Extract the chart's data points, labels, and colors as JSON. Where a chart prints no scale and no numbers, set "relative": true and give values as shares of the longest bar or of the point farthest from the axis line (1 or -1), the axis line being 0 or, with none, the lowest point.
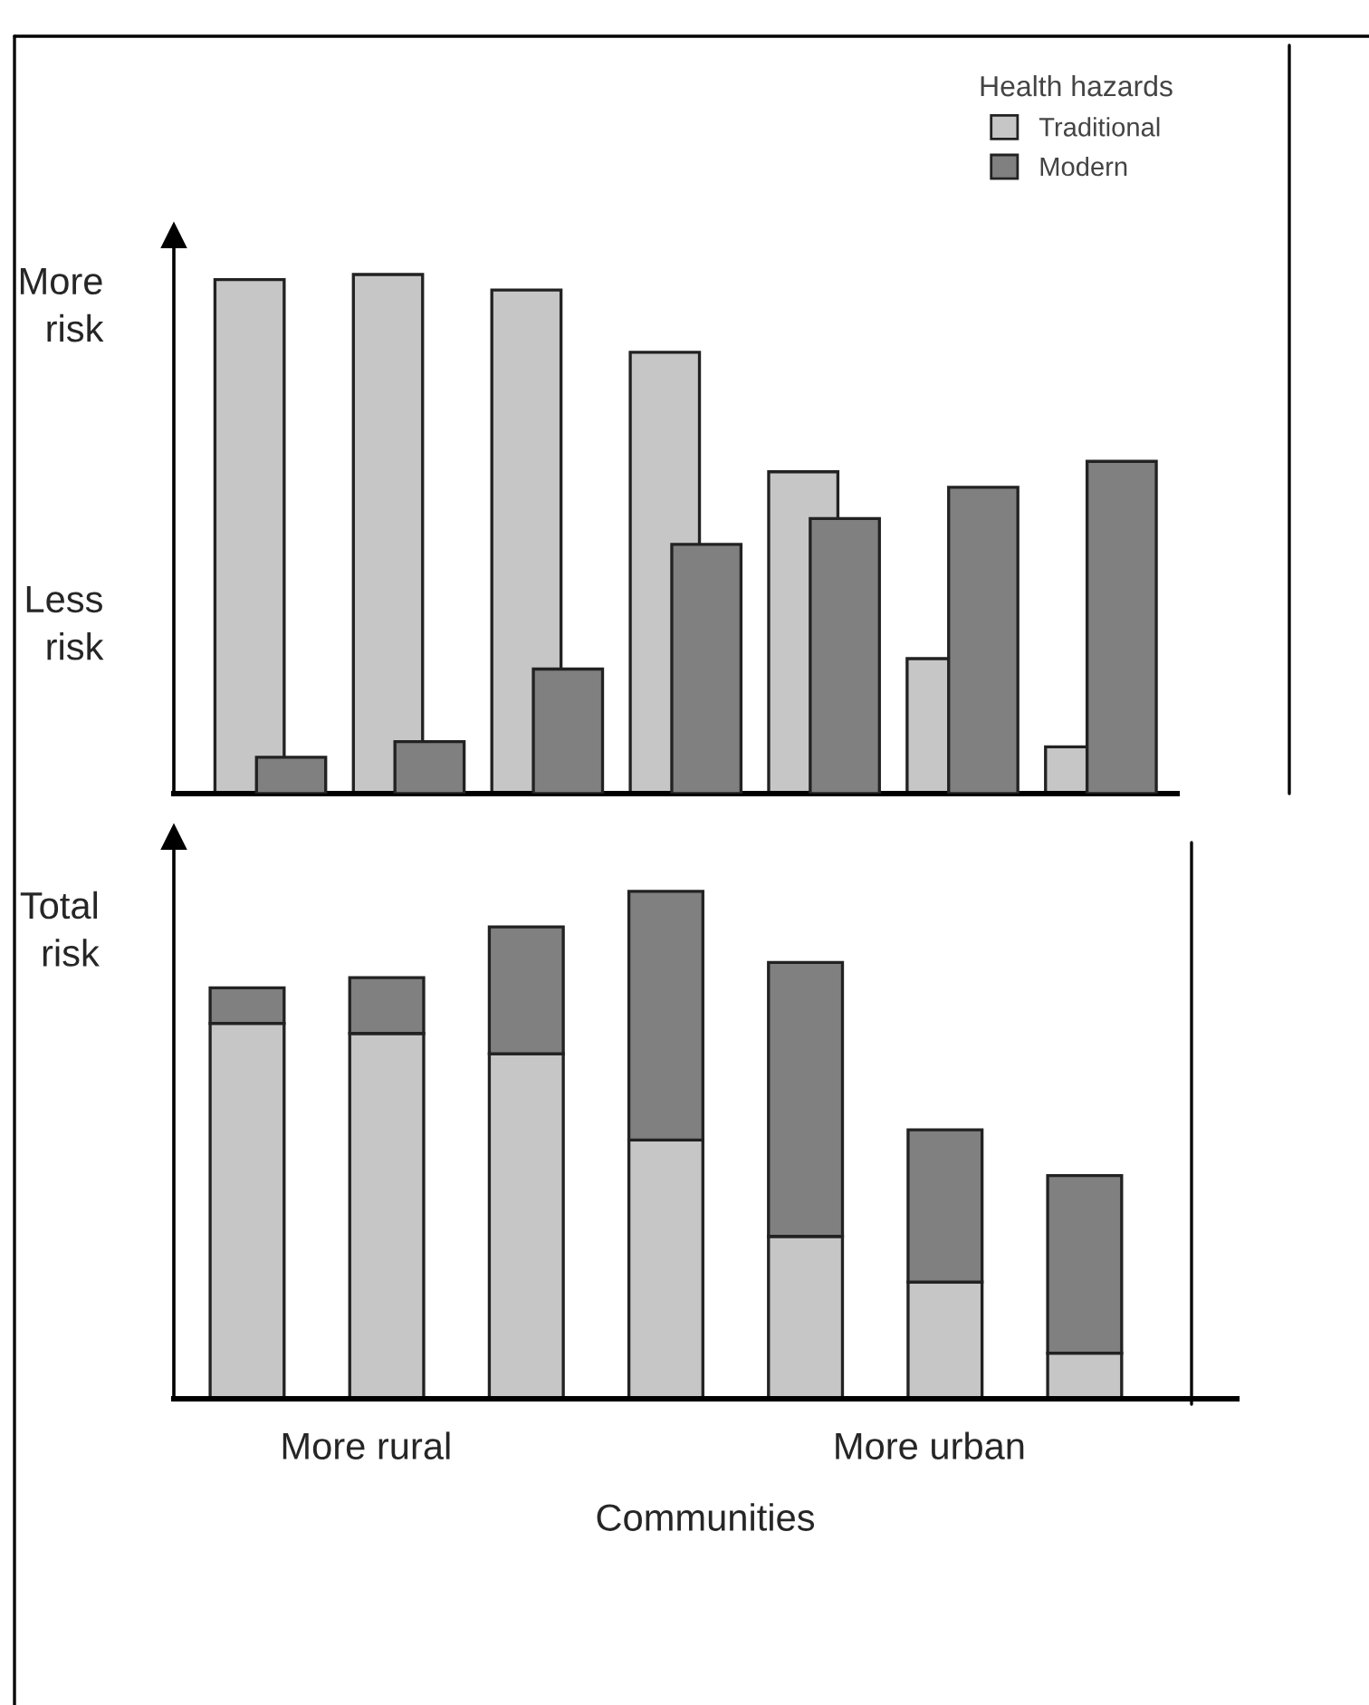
{
  "chart_data": [
    {
      "type": "bar",
      "relative": true,
      "legend": "top right",
      "legend_title": "Health hazards",
      "categories": [
        null,
        null,
        null,
        null,
        null,
        null,
        null
      ],
      "series": [
        {
          "name": "Traditional",
          "color": "#c6c6c6",
          "values": [
            0.99,
            1,
            0.97,
            0.85,
            0.62,
            0.26,
            0.09
          ]
        },
        {
          "name": "Modern",
          "color": "#808080",
          "values": [
            0.07,
            0.1,
            0.24,
            0.48,
            0.53,
            0.59,
            0.64
          ]
        }
      ],
      "annotations": [
        "More\nrisk",
        "Less\nrisk"
      ]
    },
    {
      "type": "bar",
      "relative": true,
      "stacked": true,
      "categories": [
        null,
        null,
        null,
        null,
        null,
        null,
        null
      ],
      "xlabel": "Communities",
      "series": [
        {
          "color": "#c6c6c6",
          "values": [
            0.74,
            0.72,
            0.68,
            0.51,
            0.32,
            0.23,
            0.09
          ]
        },
        {
          "color": "#808080",
          "values": [
            0.07,
            0.11,
            0.25,
            0.49,
            0.54,
            0.3,
            0.35
          ]
        }
      ],
      "annotations": [
        "Total\nrisk",
        "More rural",
        "More urban"
      ]
    }
  ]
}
